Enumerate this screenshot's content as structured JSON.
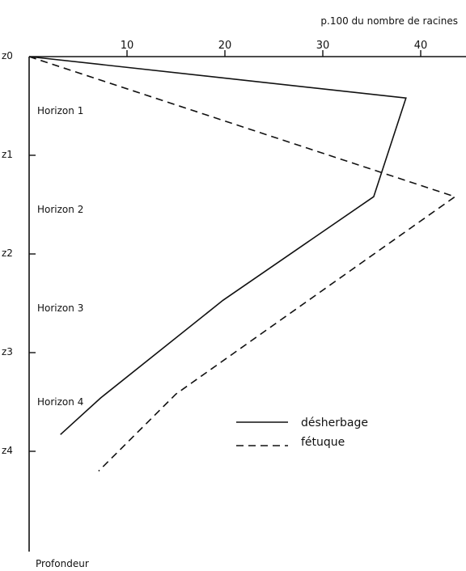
{
  "chart_data": {
    "type": "line",
    "title": "",
    "xlabel": "p.100 du nombre de racines",
    "ylabel": "Profondeur",
    "xlim": [
      0,
      45
    ],
    "x_ticks": [
      10,
      20,
      30,
      40
    ],
    "x_axis_position": "top",
    "y_ticks": [
      "z0",
      "z1",
      "z2",
      "z3",
      "z4"
    ],
    "y_tick_values": [
      0,
      1,
      2,
      3,
      4
    ],
    "ylim": [
      0,
      5.0
    ],
    "y_inverted": true,
    "horizon_labels": [
      {
        "label": "Horizon 1",
        "depth": 0.55
      },
      {
        "label": "Horizon 2",
        "depth": 1.55
      },
      {
        "label": "Horizon 3",
        "depth": 2.55
      },
      {
        "label": "Horizon 4",
        "depth": 3.5
      }
    ],
    "series": [
      {
        "name": "désherbage",
        "style": "solid",
        "color": "#111111",
        "points": [
          {
            "x": 0,
            "y": 0
          },
          {
            "x": 38.5,
            "y": 0.42
          },
          {
            "x": 35.2,
            "y": 1.42
          },
          {
            "x": 19.8,
            "y": 2.47
          },
          {
            "x": 7.3,
            "y": 3.46
          },
          {
            "x": 3.2,
            "y": 3.83
          }
        ]
      },
      {
        "name": "fétuque",
        "style": "dashed",
        "color": "#111111",
        "points": [
          {
            "x": 0,
            "y": 0
          },
          {
            "x": 43.5,
            "y": 1.42
          },
          {
            "x": 15.0,
            "y": 3.42
          },
          {
            "x": 7.1,
            "y": 4.2
          }
        ]
      }
    ],
    "legend_position": "bottom-right",
    "grid": false
  }
}
